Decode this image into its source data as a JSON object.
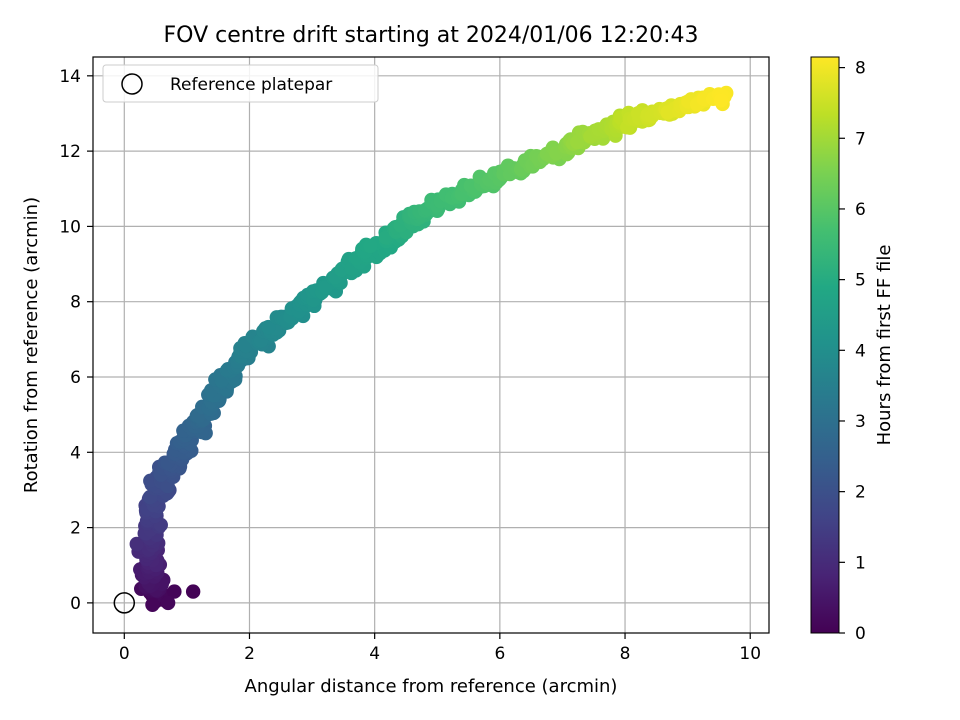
{
  "chart_data": {
    "type": "scatter",
    "title": "FOV centre drift starting at 2024/01/06 12:20:43",
    "xlabel": "Angular distance from reference (arcmin)",
    "ylabel": "Rotation from reference (arcmin)",
    "colorbar_label": "Hours from first FF file",
    "xlim": [
      -0.5,
      10.3
    ],
    "ylim": [
      -0.8,
      14.5
    ],
    "xticks": [
      "0",
      "2",
      "4",
      "6",
      "8",
      "10"
    ],
    "yticks": [
      "0",
      "2",
      "4",
      "6",
      "8",
      "10",
      "12",
      "14"
    ],
    "cticks": [
      "0",
      "1",
      "2",
      "3",
      "4",
      "5",
      "6",
      "7",
      "8"
    ],
    "clim": [
      0,
      8.15
    ],
    "colormap": "viridis",
    "grid": true,
    "legend": {
      "placement": "top-left",
      "entries": [
        "Reference platepar"
      ]
    },
    "reference_point": {
      "x": 0,
      "y": 0,
      "label": "Reference platepar"
    },
    "drift_trend": [
      {
        "hours": 0.0,
        "x": 0.55,
        "y": 0.1
      },
      {
        "hours": 0.3,
        "x": 0.45,
        "y": 0.4
      },
      {
        "hours": 0.7,
        "x": 0.4,
        "y": 1.0
      },
      {
        "hours": 1.0,
        "x": 0.4,
        "y": 1.5
      },
      {
        "hours": 1.4,
        "x": 0.45,
        "y": 2.2
      },
      {
        "hours": 1.8,
        "x": 0.55,
        "y": 3.0
      },
      {
        "hours": 2.2,
        "x": 0.8,
        "y": 3.8
      },
      {
        "hours": 2.6,
        "x": 1.1,
        "y": 4.6
      },
      {
        "hours": 3.0,
        "x": 1.4,
        "y": 5.4
      },
      {
        "hours": 3.4,
        "x": 1.8,
        "y": 6.4
      },
      {
        "hours": 3.8,
        "x": 2.4,
        "y": 7.3
      },
      {
        "hours": 4.2,
        "x": 3.0,
        "y": 8.1
      },
      {
        "hours": 4.6,
        "x": 3.6,
        "y": 8.9
      },
      {
        "hours": 5.0,
        "x": 4.3,
        "y": 9.8
      },
      {
        "hours": 5.5,
        "x": 5.0,
        "y": 10.6
      },
      {
        "hours": 6.0,
        "x": 6.0,
        "y": 11.3
      },
      {
        "hours": 6.5,
        "x": 6.8,
        "y": 11.9
      },
      {
        "hours": 7.0,
        "x": 7.5,
        "y": 12.5
      },
      {
        "hours": 7.5,
        "x": 8.3,
        "y": 12.9
      },
      {
        "hours": 8.0,
        "x": 9.2,
        "y": 13.3
      },
      {
        "hours": 8.15,
        "x": 9.7,
        "y": 13.5
      }
    ],
    "outliers": [
      {
        "hours": 0.05,
        "x": 1.1,
        "y": 0.3
      },
      {
        "hours": 0.1,
        "x": 0.8,
        "y": 0.3
      },
      {
        "hours": 0.15,
        "x": 0.7,
        "y": 0.0
      },
      {
        "hours": 0.12,
        "x": 0.45,
        "y": -0.05
      }
    ]
  }
}
